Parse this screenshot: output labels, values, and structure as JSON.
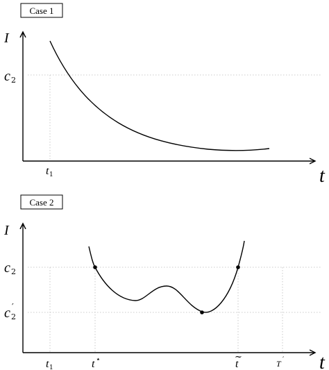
{
  "panels": [
    {
      "case_label": "Case 1",
      "y_axis_label": "I",
      "x_axis_label": "t",
      "y_tick_labels": {
        "c2": "c",
        "c2_sub": "2"
      },
      "x_tick_labels": {
        "t1": "t",
        "t1_sub": "1"
      }
    },
    {
      "case_label": "Case 2",
      "y_axis_label": "I",
      "x_axis_label": "t",
      "y_tick_labels": {
        "c2": "c",
        "c2_sub": "2",
        "c2p": "c",
        "c2p_sub": "2",
        "c2p_prime": "′"
      },
      "x_tick_labels": {
        "t1": "t",
        "t1_sub": "1",
        "tstar": "t",
        "tstar_sup": "⋆",
        "ttilde": "t",
        "ttilde_mark": "~",
        "Tprime": "T",
        "Tprime_sup": "′"
      }
    }
  ]
}
